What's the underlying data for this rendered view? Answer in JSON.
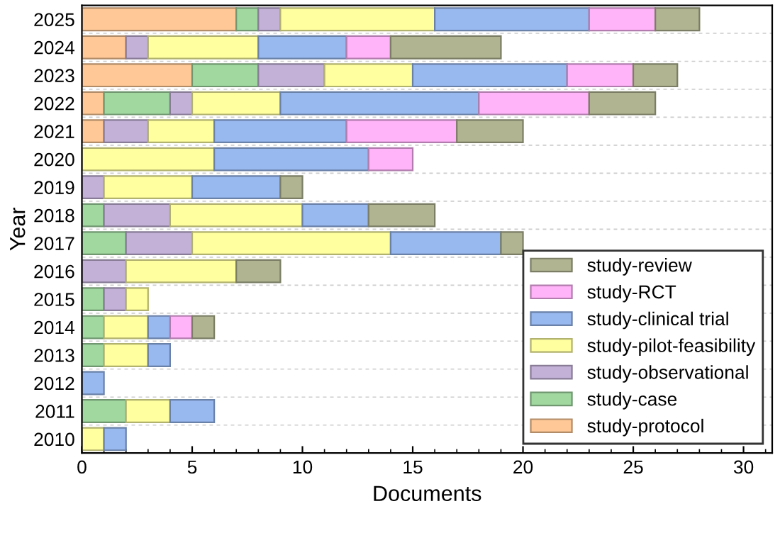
{
  "chart_data": {
    "type": "bar",
    "orientation": "horizontal",
    "stacked": true,
    "xlabel": "Documents",
    "ylabel": "Year",
    "categories": [
      "2025",
      "2024",
      "2023",
      "2022",
      "2021",
      "2020",
      "2019",
      "2018",
      "2017",
      "2016",
      "2015",
      "2014",
      "2013",
      "2012",
      "2011",
      "2010"
    ],
    "series": [
      {
        "name": "study-protocol",
        "color": "#ffc896",
        "values": [
          7,
          2,
          5,
          1,
          1,
          null,
          null,
          null,
          null,
          null,
          null,
          null,
          null,
          null,
          null,
          null
        ]
      },
      {
        "name": "study-case",
        "color": "#a0d8a0",
        "values": [
          1,
          null,
          3,
          3,
          null,
          null,
          null,
          1,
          2,
          null,
          1,
          1,
          1,
          null,
          2,
          null
        ]
      },
      {
        "name": "study-observational",
        "color": "#c3b1d8",
        "values": [
          1,
          1,
          3,
          1,
          2,
          null,
          1,
          3,
          3,
          2,
          1,
          null,
          null,
          null,
          null,
          null
        ]
      },
      {
        "name": "study-pilot-feasibility",
        "color": "#ffff9f",
        "values": [
          7,
          5,
          4,
          4,
          3,
          6,
          4,
          6,
          9,
          5,
          1,
          2,
          2,
          null,
          2,
          1
        ]
      },
      {
        "name": "study-clinical trial",
        "color": "#98b8f0",
        "values": [
          7,
          4,
          7,
          9,
          6,
          7,
          4,
          3,
          5,
          null,
          null,
          1,
          1,
          1,
          2,
          1
        ]
      },
      {
        "name": "study-RCT",
        "color": "#ffb3f8",
        "values": [
          3,
          2,
          3,
          5,
          5,
          2,
          null,
          null,
          null,
          null,
          null,
          1,
          null,
          null,
          null,
          null
        ]
      },
      {
        "name": "study-review",
        "color": "#b0b490",
        "values": [
          2,
          5,
          2,
          3,
          3,
          null,
          1,
          3,
          1,
          2,
          null,
          1,
          null,
          null,
          null,
          null
        ]
      }
    ],
    "xlim": [
      0,
      31.3
    ],
    "xticks": [
      0,
      5,
      10,
      15,
      20,
      25,
      30
    ],
    "grid": "y",
    "legend": "bottom right"
  }
}
